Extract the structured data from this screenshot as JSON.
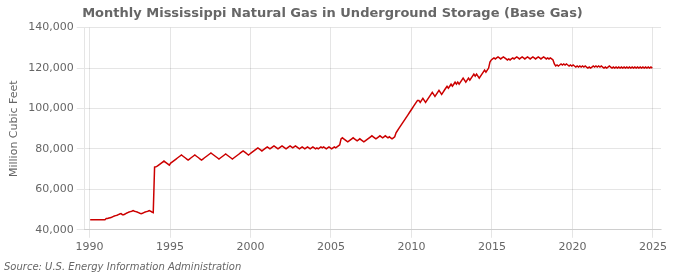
{
  "chart_data": {
    "type": "line",
    "title": "Monthly Mississippi Natural Gas in Underground Storage (Base Gas)",
    "ylabel": "Million Cubic Feet",
    "annotations": [
      "Source: U.S. Energy Information Administration"
    ],
    "xlim": [
      1989.7,
      2025.5
    ],
    "ylim": [
      40000,
      140000
    ],
    "xticks": [
      1990,
      1995,
      2000,
      2005,
      2010,
      2015,
      2020,
      2025
    ],
    "yticks": [
      {
        "value": 40000,
        "label": "40,000"
      },
      {
        "value": 60000,
        "label": "60,000"
      },
      {
        "value": 80000,
        "label": "80,000"
      },
      {
        "value": 100000,
        "label": "100,000"
      },
      {
        "value": 120000,
        "label": "120,000"
      },
      {
        "value": 140000,
        "label": "140,000"
      }
    ],
    "grid": true,
    "color": "#cc0000",
    "x": [
      1990.0416667,
      1990.125,
      1990.2083333,
      1990.2916667,
      1990.375,
      1990.4583333,
      1990.5416667,
      1990.625,
      1990.7083333,
      1990.7916667,
      1990.875,
      1990.9583333,
      1991.0416667,
      1991.125,
      1991.2083333,
      1991.2916667,
      1991.375,
      1991.4583333,
      1991.5416667,
      1991.625,
      1991.7083333,
      1991.7916667,
      1991.875,
      1991.9583333,
      1992.0416667,
      1992.125,
      1992.2083333,
      1992.2916667,
      1992.375,
      1992.4583333,
      1992.5416667,
      1992.625,
      1992.7083333,
      1992.7916667,
      1992.875,
      1992.9583333,
      1993.0416667,
      1993.125,
      1993.2083333,
      1993.2916667,
      1993.375,
      1993.4583333,
      1993.5416667,
      1993.625,
      1993.7083333,
      1993.7916667,
      1993.875,
      1993.9583333,
      1994.0416667,
      1994.125,
      1994.2083333,
      1994.2916667,
      1994.375,
      1994.4583333,
      1994.5416667,
      1994.625,
      1994.7083333,
      1994.7916667,
      1994.875,
      1994.9583333,
      1995.0416667,
      1995.125,
      1995.2083333,
      1995.2916667,
      1995.375,
      1995.4583333,
      1995.5416667,
      1995.625,
      1995.7083333,
      1995.7916667,
      1995.875,
      1995.9583333,
      1996.0416667,
      1996.125,
      1996.2083333,
      1996.2916667,
      1996.375,
      1996.4583333,
      1996.5416667,
      1996.625,
      1996.7083333,
      1996.7916667,
      1996.875,
      1996.9583333,
      1997.0416667,
      1997.125,
      1997.2083333,
      1997.2916667,
      1997.375,
      1997.4583333,
      1997.5416667,
      1997.625,
      1997.7083333,
      1997.7916667,
      1997.875,
      1997.9583333,
      1998.0416667,
      1998.125,
      1998.2083333,
      1998.2916667,
      1998.375,
      1998.4583333,
      1998.5416667,
      1998.625,
      1998.7083333,
      1998.7916667,
      1998.875,
      1998.9583333,
      1999.0416667,
      1999.125,
      1999.2083333,
      1999.2916667,
      1999.375,
      1999.4583333,
      1999.5416667,
      1999.625,
      1999.7083333,
      1999.7916667,
      1999.875,
      1999.9583333,
      2000.0416667,
      2000.125,
      2000.2083333,
      2000.2916667,
      2000.375,
      2000.4583333,
      2000.5416667,
      2000.625,
      2000.7083333,
      2000.7916667,
      2000.875,
      2000.9583333,
      2001.0416667,
      2001.125,
      2001.2083333,
      2001.2916667,
      2001.375,
      2001.4583333,
      2001.5416667,
      2001.625,
      2001.7083333,
      2001.7916667,
      2001.875,
      2001.9583333,
      2002.0416667,
      2002.125,
      2002.2083333,
      2002.2916667,
      2002.375,
      2002.4583333,
      2002.5416667,
      2002.625,
      2002.7083333,
      2002.7916667,
      2002.875,
      2002.9583333,
      2003.0416667,
      2003.125,
      2003.2083333,
      2003.2916667,
      2003.375,
      2003.4583333,
      2003.5416667,
      2003.625,
      2003.7083333,
      2003.7916667,
      2003.875,
      2003.9583333,
      2004.0416667,
      2004.125,
      2004.2083333,
      2004.2916667,
      2004.375,
      2004.4583333,
      2004.5416667,
      2004.625,
      2004.7083333,
      2004.7916667,
      2004.875,
      2004.9583333,
      2005.0416667,
      2005.125,
      2005.2083333,
      2005.2916667,
      2005.375,
      2005.4583333,
      2005.5416667,
      2005.625,
      2005.7083333,
      2005.7916667,
      2005.875,
      2005.9583333,
      2006.0416667,
      2006.125,
      2006.2083333,
      2006.2916667,
      2006.375,
      2006.4583333,
      2006.5416667,
      2006.625,
      2006.7083333,
      2006.7916667,
      2006.875,
      2006.9583333,
      2007.0416667,
      2007.125,
      2007.2083333,
      2007.2916667,
      2007.375,
      2007.4583333,
      2007.5416667,
      2007.625,
      2007.7083333,
      2007.7916667,
      2007.875,
      2007.9583333,
      2008.0416667,
      2008.125,
      2008.2083333,
      2008.2916667,
      2008.375,
      2008.4583333,
      2008.5416667,
      2008.625,
      2008.7083333,
      2008.7916667,
      2008.875,
      2008.9583333,
      2009.0416667,
      2009.125,
      2009.2083333,
      2009.2916667,
      2009.375,
      2009.4583333,
      2009.5416667,
      2009.625,
      2009.7083333,
      2009.7916667,
      2009.875,
      2009.9583333,
      2010.0416667,
      2010.125,
      2010.2083333,
      2010.2916667,
      2010.375,
      2010.4583333,
      2010.5416667,
      2010.625,
      2010.7083333,
      2010.7916667,
      2010.875,
      2010.9583333,
      2011.0416667,
      2011.125,
      2011.2083333,
      2011.2916667,
      2011.375,
      2011.4583333,
      2011.5416667,
      2011.625,
      2011.7083333,
      2011.7916667,
      2011.875,
      2011.9583333,
      2012.0416667,
      2012.125,
      2012.2083333,
      2012.2916667,
      2012.375,
      2012.4583333,
      2012.5416667,
      2012.625,
      2012.7083333,
      2012.7916667,
      2012.875,
      2012.9583333,
      2013.0416667,
      2013.125,
      2013.2083333,
      2013.2916667,
      2013.375,
      2013.4583333,
      2013.5416667,
      2013.625,
      2013.7083333,
      2013.7916667,
      2013.875,
      2013.9583333,
      2014.0416667,
      2014.125,
      2014.2083333,
      2014.2916667,
      2014.375,
      2014.4583333,
      2014.5416667,
      2014.625,
      2014.7083333,
      2014.7916667,
      2014.875,
      2014.9583333,
      2015.0416667,
      2015.125,
      2015.2083333,
      2015.2916667,
      2015.375,
      2015.4583333,
      2015.5416667,
      2015.625,
      2015.7083333,
      2015.7916667,
      2015.875,
      2015.9583333,
      2016.0416667,
      2016.125,
      2016.2083333,
      2016.2916667,
      2016.375,
      2016.4583333,
      2016.5416667,
      2016.625,
      2016.7083333,
      2016.7916667,
      2016.875,
      2016.9583333,
      2017.0416667,
      2017.125,
      2017.2083333,
      2017.2916667,
      2017.375,
      2017.4583333,
      2017.5416667,
      2017.625,
      2017.7083333,
      2017.7916667,
      2017.875,
      2017.9583333,
      2018.0416667,
      2018.125,
      2018.2083333,
      2018.2916667,
      2018.375,
      2018.4583333,
      2018.5416667,
      2018.625,
      2018.7083333,
      2018.7916667,
      2018.875,
      2018.9583333,
      2019.0416667,
      2019.125,
      2019.2083333,
      2019.2916667,
      2019.375,
      2019.4583333,
      2019.5416667,
      2019.625,
      2019.7083333,
      2019.7916667,
      2019.875,
      2019.9583333,
      2020.0416667,
      2020.125,
      2020.2083333,
      2020.2916667,
      2020.375,
      2020.4583333,
      2020.5416667,
      2020.625,
      2020.7083333,
      2020.7916667,
      2020.875,
      2020.9583333,
      2021.0416667,
      2021.125,
      2021.2083333,
      2021.2916667,
      2021.375,
      2021.4583333,
      2021.5416667,
      2021.625,
      2021.7083333,
      2021.7916667,
      2021.875,
      2021.9583333,
      2022.0416667,
      2022.125,
      2022.2083333,
      2022.2916667,
      2022.375,
      2022.4583333,
      2022.5416667,
      2022.625,
      2022.7083333,
      2022.7916667,
      2022.875,
      2022.9583333,
      2023.0416667,
      2023.125,
      2023.2083333,
      2023.2916667,
      2023.375,
      2023.4583333,
      2023.5416667,
      2023.625,
      2023.7083333,
      2023.7916667,
      2023.875,
      2023.9583333,
      2024.0416667,
      2024.125,
      2024.2083333,
      2024.2916667,
      2024.375,
      2024.4583333,
      2024.5416667,
      2024.625,
      2024.7083333,
      2024.7916667,
      2024.875,
      2024.9583333
    ],
    "values": [
      44983,
      44983,
      44983,
      44983,
      44983,
      44983,
      44983,
      44983,
      44983,
      44983,
      44983,
      44983,
      45600,
      45600,
      45800,
      46000,
      46200,
      46500,
      46800,
      47000,
      47200,
      47500,
      47800,
      48000,
      47500,
      47500,
      47800,
      48200,
      48500,
      48800,
      49000,
      49200,
      49500,
      49200,
      49000,
      48800,
      48500,
      48200,
      48000,
      48200,
      48500,
      48800,
      49000,
      49200,
      49500,
      49200,
      48800,
      48500,
      71000,
      71200,
      71500,
      72000,
      72500,
      73000,
      73500,
      74000,
      73500,
      73000,
      72500,
      72000,
      73000,
      73500,
      74000,
      74500,
      75000,
      75500,
      76000,
      76500,
      77000,
      76500,
      76000,
      75500,
      75000,
      74500,
      75000,
      75500,
      76000,
      76500,
      77000,
      76500,
      76000,
      75500,
      75000,
      74500,
      75000,
      75500,
      76000,
      76500,
      77000,
      77500,
      78000,
      77500,
      77000,
      76500,
      76000,
      75500,
      75000,
      75500,
      76000,
      76500,
      77000,
      77500,
      77000,
      76500,
      76000,
      75500,
      75000,
      75500,
      76000,
      76500,
      77000,
      77500,
      78000,
      78500,
      79000,
      78500,
      78000,
      77500,
      77000,
      77500,
      78000,
      78500,
      79000,
      79500,
      80000,
      80500,
      80000,
      79500,
      79000,
      79500,
      80000,
      80500,
      81000,
      80500,
      80000,
      80500,
      81000,
      81500,
      81000,
      80500,
      80000,
      80500,
      81000,
      81500,
      81000,
      80500,
      80000,
      80500,
      81000,
      81500,
      81000,
      80500,
      81000,
      81500,
      81000,
      80500,
      80000,
      80500,
      81000,
      80500,
      80000,
      80500,
      81000,
      80500,
      80000,
      80500,
      81000,
      80500,
      80000,
      80500,
      80000,
      80500,
      81000,
      80500,
      81000,
      80500,
      80000,
      80500,
      81000,
      80500,
      80000,
      80500,
      81000,
      80500,
      81000,
      81500,
      82000,
      85000,
      85500,
      85000,
      84500,
      84000,
      83500,
      84000,
      84500,
      85000,
      85500,
      85000,
      84500,
      84000,
      84500,
      85000,
      84500,
      84000,
      83500,
      84000,
      84500,
      85000,
      85500,
      86000,
      86500,
      86000,
      85500,
      85000,
      85500,
      86000,
      86500,
      86000,
      85500,
      86000,
      86500,
      86000,
      85500,
      86000,
      85500,
      85000,
      85500,
      86000,
      88000,
      89000,
      90000,
      91000,
      92000,
      93000,
      94000,
      95000,
      96000,
      97000,
      98000,
      99000,
      100000,
      101000,
      102000,
      103000,
      104000,
      104000,
      103000,
      104000,
      105000,
      104000,
      103000,
      104000,
      105000,
      106000,
      107000,
      108000,
      107000,
      106000,
      107000,
      108000,
      109000,
      108000,
      107000,
      108000,
      109000,
      110000,
      111000,
      110000,
      111000,
      112000,
      111000,
      112000,
      113000,
      112000,
      113000,
      112000,
      113000,
      114000,
      115000,
      114000,
      113000,
      114000,
      115000,
      114000,
      115000,
      116000,
      117000,
      116000,
      117000,
      116000,
      115000,
      116000,
      117000,
      118000,
      119000,
      118000,
      119000,
      120000,
      123000,
      124000,
      124500,
      125000,
      124500,
      125000,
      125500,
      125000,
      124500,
      125000,
      125500,
      125000,
      124500,
      124000,
      124500,
      124000,
      124500,
      125000,
      124500,
      125000,
      125500,
      125000,
      124500,
      125000,
      125500,
      125000,
      124500,
      125000,
      125500,
      125000,
      124500,
      125000,
      125500,
      125000,
      124500,
      125000,
      125500,
      125000,
      124500,
      125000,
      125500,
      125000,
      124500,
      125000,
      124500,
      125000,
      124500,
      124000,
      122000,
      121000,
      121500,
      121000,
      121500,
      122000,
      121500,
      122000,
      121500,
      122000,
      121500,
      121000,
      121500,
      121000,
      121500,
      121000,
      120500,
      121000,
      120500,
      121000,
      120500,
      121000,
      120500,
      121000,
      120500,
      120000,
      120500,
      120000,
      120500,
      121000,
      120500,
      121000,
      120500,
      121000,
      120500,
      121000,
      120500,
      120000,
      120500,
      120000,
      120500,
      121000,
      120500,
      120000,
      120500,
      120000,
      120500,
      120000,
      120500,
      120000,
      120500,
      120000,
      120500,
      120000,
      120500,
      120000,
      120500,
      120000,
      120500,
      120000,
      120500,
      120000,
      120500,
      120000,
      120500,
      120000,
      120500,
      120000,
      120500,
      120000,
      120500,
      120000,
      120500,
      120000
    ]
  }
}
